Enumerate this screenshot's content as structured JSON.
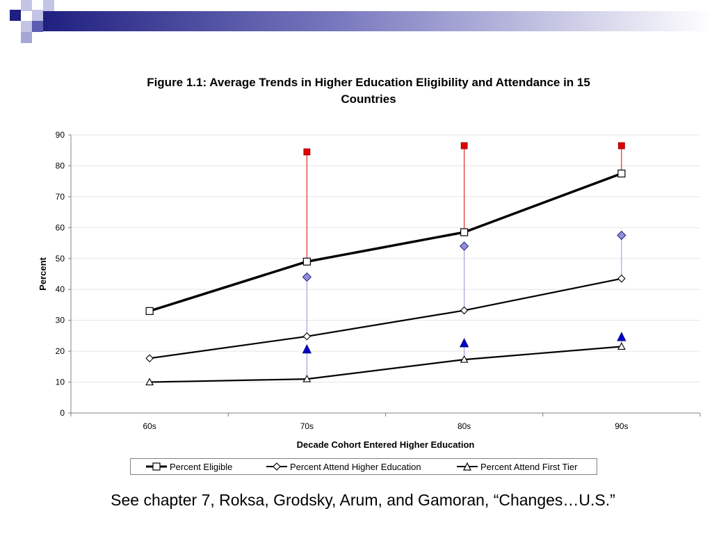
{
  "slide": {
    "caption": "See chapter 7, Roksa, Grodsky, Arum, and Gamoran, “Changes…U.S.”"
  },
  "colors": {
    "header_dark": "#1f1f80",
    "header_mid": "#5c5cb0",
    "header_light": "#a6a6d6",
    "line": "#000000",
    "red_marker": "#e00000",
    "blue_diamond": "#8f8fdb",
    "blue_triangle": "#0000cc"
  },
  "chart_data": {
    "type": "line",
    "title_line1": "Figure 1.1: Average Trends in Higher Education Eligibility and Attendance in 15",
    "title_line2": "Countries",
    "xlabel": "Decade Cohort Entered Higher Education",
    "ylabel": "Percent",
    "categories": [
      "60s",
      "70s",
      "80s",
      "90s"
    ],
    "ylim": [
      0,
      90
    ],
    "yticks": [
      0,
      10,
      20,
      30,
      40,
      50,
      60,
      70,
      80,
      90
    ],
    "grid": "horizontal",
    "legend_position": "bottom",
    "series": [
      {
        "name": "Percent Eligible",
        "marker": "square",
        "values": [
          33,
          49,
          58.5,
          77.5
        ]
      },
      {
        "name": "Percent Attend Higher Education",
        "marker": "diamond",
        "values": [
          17.7,
          24.8,
          33.2,
          43.5
        ]
      },
      {
        "name": "Percent Attend First Tier",
        "marker": "triangle",
        "values": [
          10,
          11,
          17.3,
          21.5
        ]
      }
    ],
    "unconnected_points": [
      {
        "marker": "red-square",
        "values": [
          null,
          84.5,
          86.5,
          86.5
        ],
        "connects_to": "Percent Eligible"
      },
      {
        "marker": "blue-diamond",
        "values": [
          null,
          44,
          54,
          57.5
        ],
        "connects_to": "Percent Attend Higher Education"
      },
      {
        "marker": "blue-triangle",
        "values": [
          null,
          20.5,
          22.5,
          24.5
        ],
        "connects_to": "Percent Attend First Tier"
      }
    ]
  }
}
